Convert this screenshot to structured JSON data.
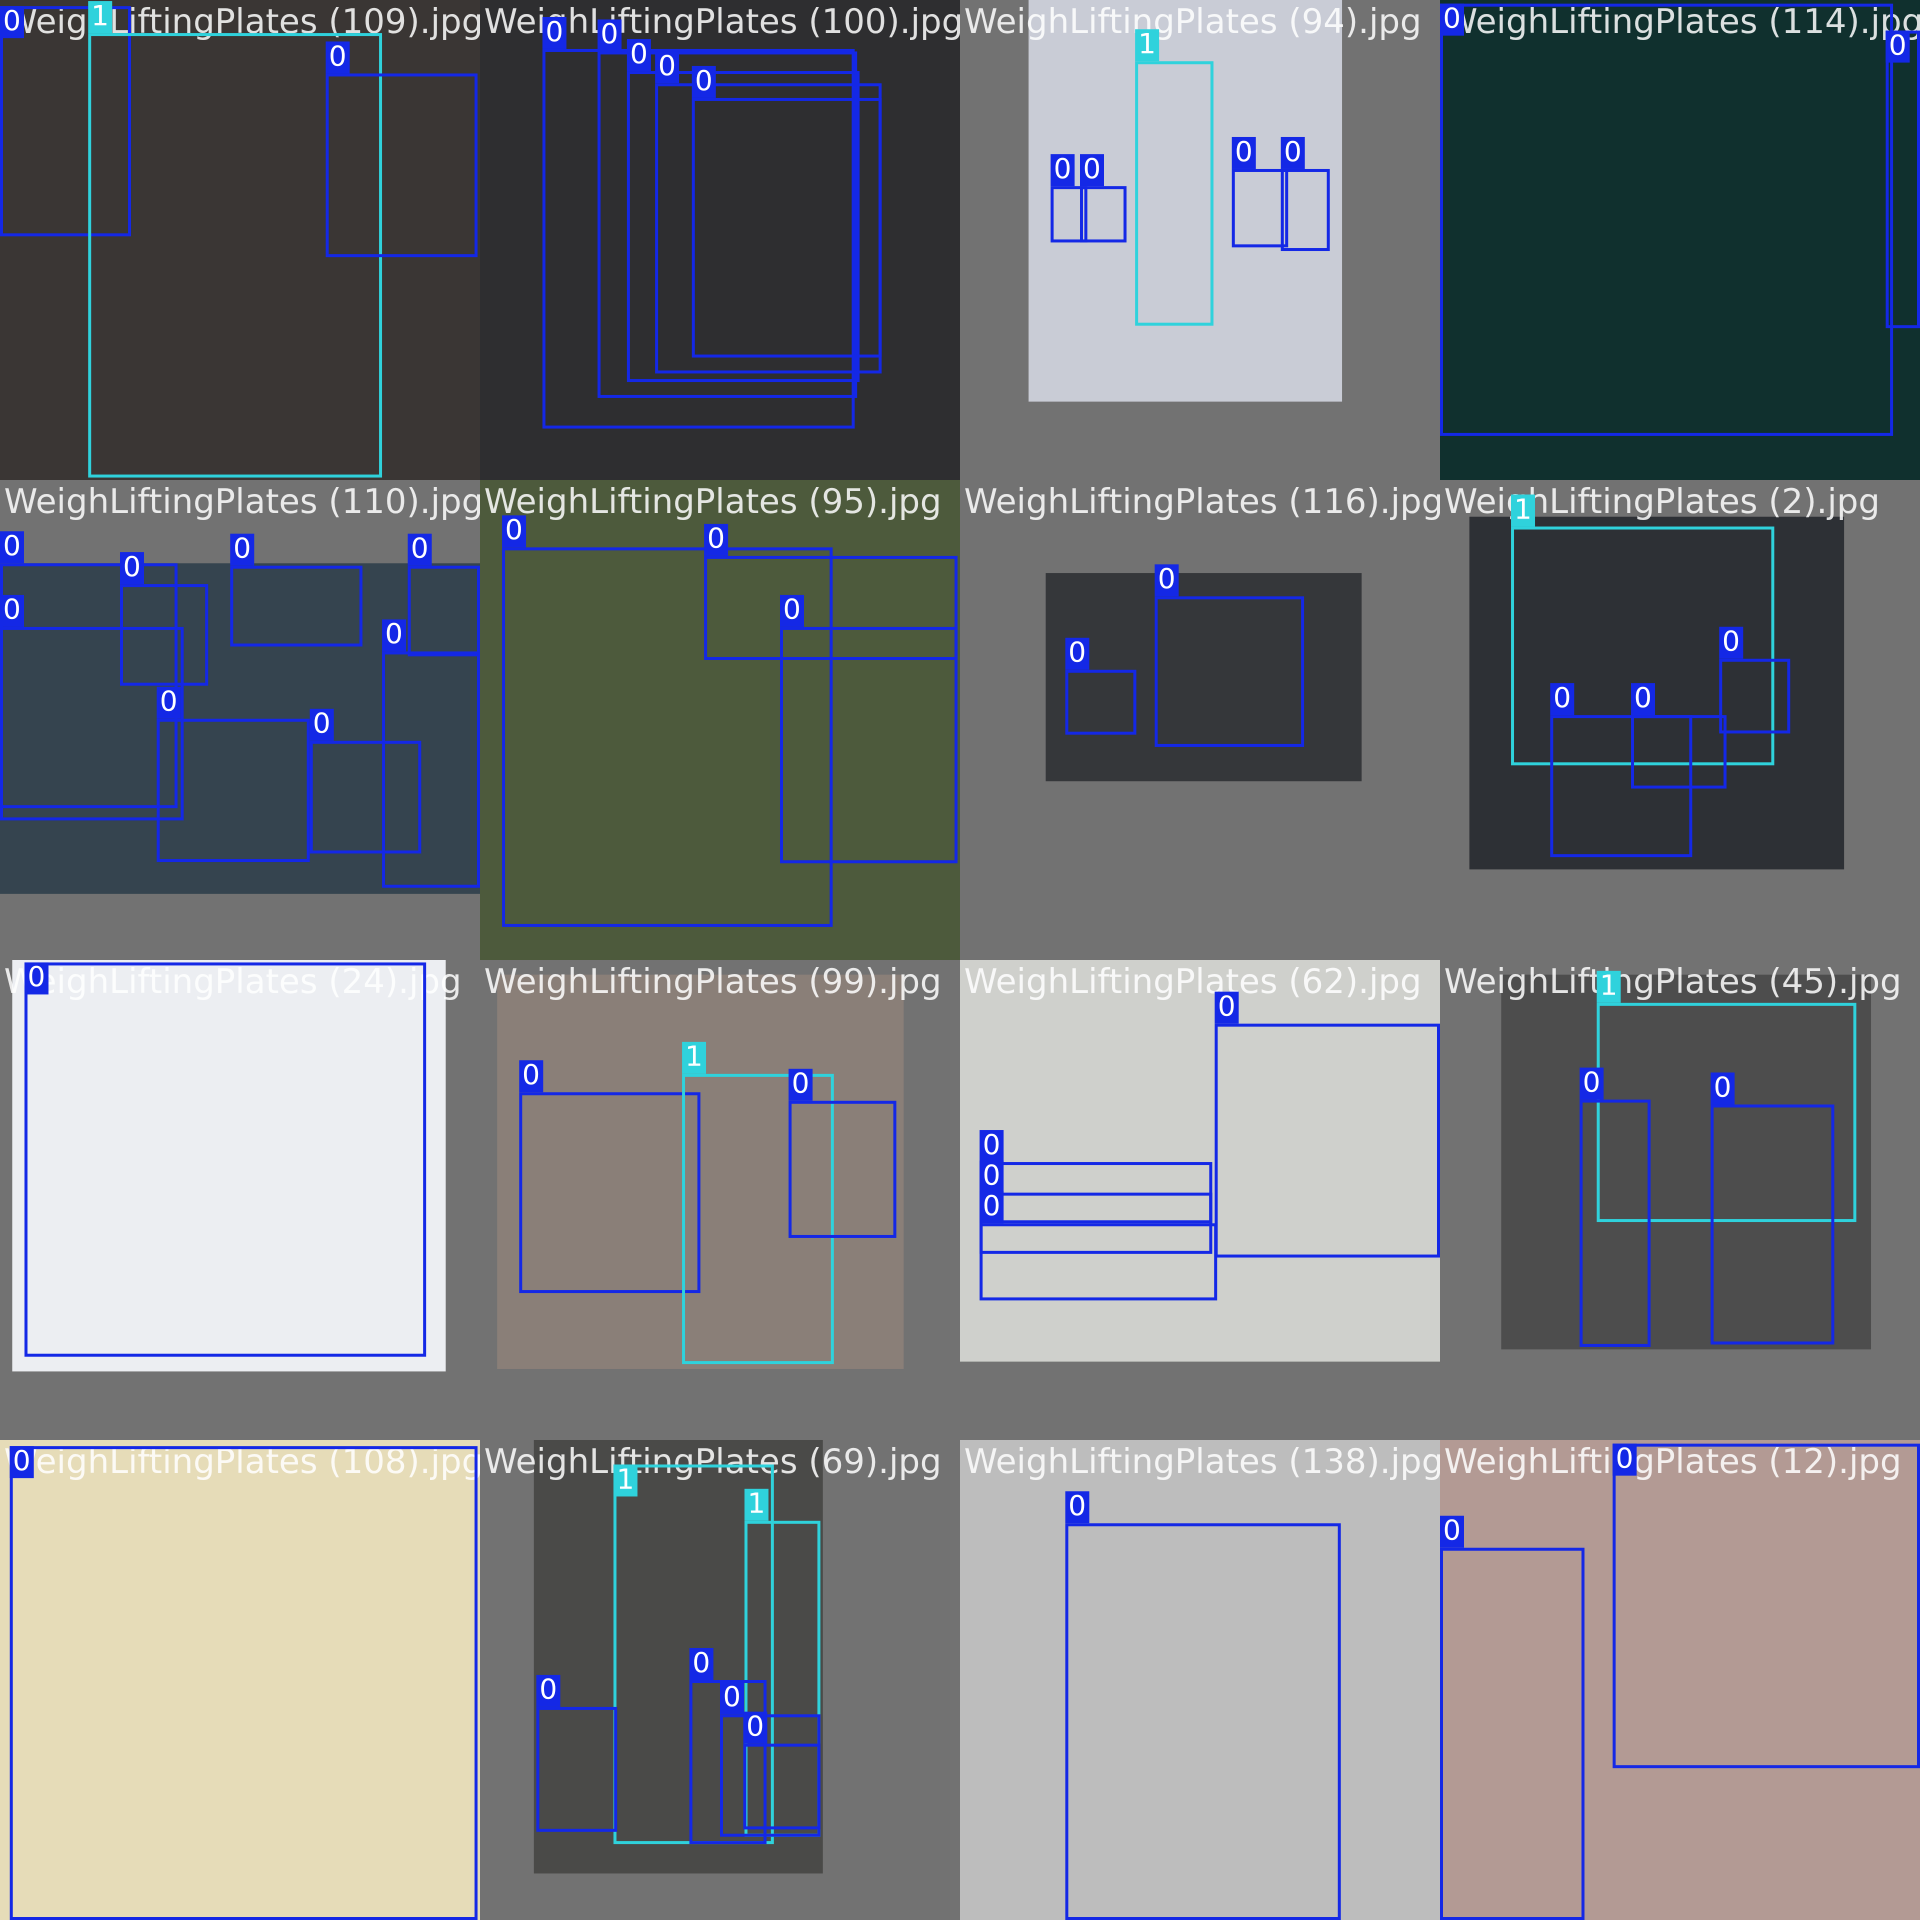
{
  "tiles": [
    {
      "filename": "WeighLiftingPlates (109).jpg",
      "boxes": [
        {
          "label": "0"
        },
        {
          "label": "1"
        },
        {
          "label": "0"
        }
      ]
    },
    {
      "filename": "WeighLiftingPlates (100).jpg",
      "boxes": [
        {
          "label": "0"
        },
        {
          "label": "0"
        },
        {
          "label": "0"
        },
        {
          "label": "0"
        },
        {
          "label": "0"
        }
      ]
    },
    {
      "filename": "WeighLiftingPlates (94).jpg",
      "boxes": [
        {
          "label": "1"
        },
        {
          "label": "0"
        },
        {
          "label": "0"
        },
        {
          "label": "0"
        },
        {
          "label": "0"
        }
      ]
    },
    {
      "filename": "WeighLiftingPlates (114).jpg",
      "boxes": [
        {
          "label": "0"
        },
        {
          "label": "0"
        }
      ]
    },
    {
      "filename": "WeighLiftingPlates (110).jpg",
      "boxes": [
        {
          "label": "0"
        },
        {
          "label": "0"
        },
        {
          "label": "0"
        },
        {
          "label": "0"
        },
        {
          "label": "0"
        },
        {
          "label": "0"
        },
        {
          "label": "0"
        },
        {
          "label": "0"
        }
      ]
    },
    {
      "filename": "WeighLiftingPlates (95).jpg",
      "boxes": [
        {
          "label": "0"
        },
        {
          "label": "0"
        },
        {
          "label": "0"
        }
      ]
    },
    {
      "filename": "WeighLiftingPlates (116).jpg",
      "boxes": [
        {
          "label": "0"
        },
        {
          "label": "0"
        }
      ]
    },
    {
      "filename": "WeighLiftingPlates (2).jpg",
      "boxes": [
        {
          "label": "1"
        },
        {
          "label": "0"
        },
        {
          "label": "0"
        },
        {
          "label": "0"
        }
      ]
    },
    {
      "filename": "WeighLiftingPlates (24).jpg",
      "boxes": [
        {
          "label": "0"
        }
      ]
    },
    {
      "filename": "WeighLiftingPlates (99).jpg",
      "boxes": [
        {
          "label": "0"
        },
        {
          "label": "1"
        },
        {
          "label": "0"
        }
      ]
    },
    {
      "filename": "WeighLiftingPlates (62).jpg",
      "boxes": [
        {
          "label": "0"
        },
        {
          "label": "0"
        },
        {
          "label": "0"
        },
        {
          "label": "0"
        }
      ]
    },
    {
      "filename": "WeighLiftingPlates (45).jpg",
      "boxes": [
        {
          "label": "1"
        },
        {
          "label": "0"
        },
        {
          "label": "0"
        }
      ]
    },
    {
      "filename": "WeighLiftingPlates (108).jpg",
      "boxes": [
        {
          "label": "0"
        }
      ]
    },
    {
      "filename": "WeighLiftingPlates (69).jpg",
      "boxes": [
        {
          "label": "1"
        },
        {
          "label": "1"
        },
        {
          "label": "0"
        },
        {
          "label": "0"
        },
        {
          "label": "0"
        },
        {
          "label": "0"
        }
      ]
    },
    {
      "filename": "WeighLiftingPlates (138).jpg",
      "boxes": [
        {
          "label": "0"
        }
      ]
    },
    {
      "filename": "WeighLiftingPlates (12).jpg",
      "boxes": [
        {
          "label": "0"
        },
        {
          "label": "0"
        }
      ]
    }
  ]
}
